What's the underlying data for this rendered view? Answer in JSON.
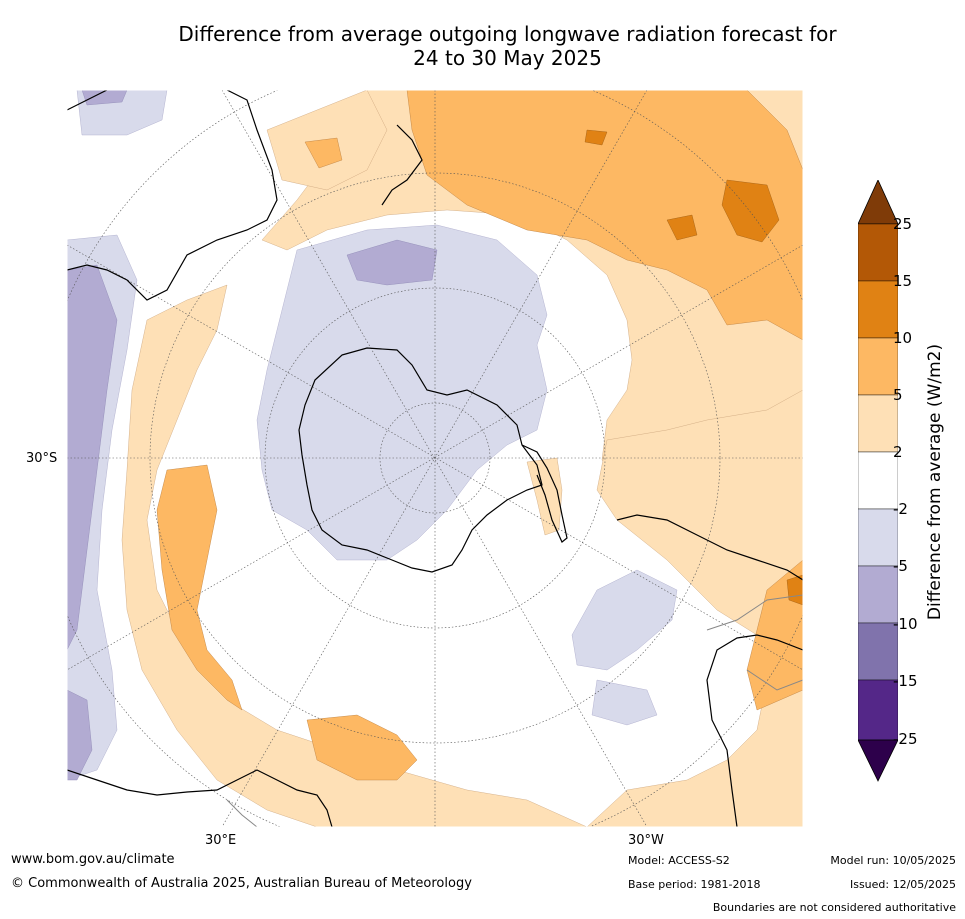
{
  "title": {
    "line1": "Difference from average outgoing longwave radiation forecast for",
    "line2": "24 to 30 May 2025"
  },
  "map": {
    "projection": "south-polar-stereographic",
    "lat_labels": [
      "30°S"
    ],
    "lon_labels": [
      "30°E",
      "30°W"
    ]
  },
  "colorbar": {
    "title": "Difference from average (W/m2)",
    "ticks": [
      "25",
      "15",
      "10",
      "5",
      "2",
      "-2",
      "-5",
      "-10",
      "-15",
      "-25"
    ],
    "colors": {
      "gt25": "#7f3b08",
      "15_25": "#b35806",
      "10_15": "#e08214",
      "5_10": "#fdb863",
      "2_5": "#fee0b6",
      "m2_2": "#ffffff",
      "m5_m2": "#d8daeb",
      "m10_m5": "#b2abd2",
      "m15_m10": "#8073ac",
      "m25_m15": "#542788",
      "lt_m25": "#2d004b"
    }
  },
  "footer": {
    "website": "www.bom.gov.au/climate",
    "copyright": "© Commonwealth of Australia 2025, Australian Bureau of Meteorology",
    "model": "Model: ACCESS-S2",
    "model_run": "Model run: 10/05/2025",
    "base_period": "Base period: 1981-2018",
    "issued": "Issued: 12/05/2025",
    "disclaimer": "Boundaries are not considered authoritative"
  }
}
